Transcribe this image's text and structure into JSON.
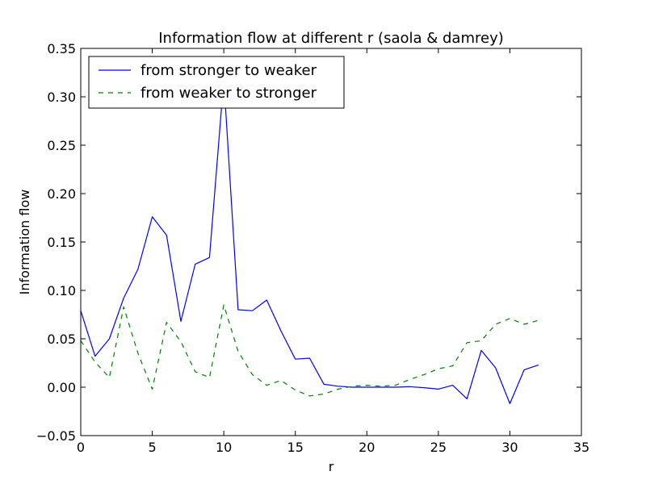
{
  "chart_data": {
    "type": "line",
    "title": "Information flow at different r (saola & damrey)",
    "xlabel": "r",
    "ylabel": "Information flow",
    "xlim": [
      0,
      35
    ],
    "ylim": [
      -0.05,
      0.35
    ],
    "x_ticks": [
      0,
      5,
      10,
      15,
      20,
      25,
      30,
      35
    ],
    "x_tick_labels": [
      "0",
      "5",
      "10",
      "15",
      "20",
      "25",
      "30",
      "35"
    ],
    "y_ticks": [
      -0.05,
      0.0,
      0.05,
      0.1,
      0.15,
      0.2,
      0.25,
      0.3,
      0.35
    ],
    "y_tick_labels": [
      "−0.05",
      "0.00",
      "0.05",
      "0.10",
      "0.15",
      "0.20",
      "0.25",
      "0.30",
      "0.35"
    ],
    "grid": false,
    "legend_position": "upper-left",
    "x": [
      0,
      1,
      2,
      3,
      4,
      5,
      6,
      7,
      8,
      9,
      10,
      11,
      12,
      13,
      14,
      15,
      16,
      17,
      18,
      19,
      20,
      21,
      22,
      23,
      24,
      25,
      26,
      27,
      28,
      29,
      30,
      31,
      32
    ],
    "series": [
      {
        "name": "from stronger to weaker",
        "color": "#0000ff",
        "style": "solid",
        "values": [
          0.079,
          0.032,
          0.05,
          0.092,
          0.122,
          0.176,
          0.157,
          0.068,
          0.127,
          0.134,
          0.318,
          0.08,
          0.079,
          0.09,
          0.058,
          0.029,
          0.03,
          0.003,
          0.001,
          0.0,
          0.0,
          0.0,
          0.0,
          0.0005,
          -0.0005,
          -0.002,
          0.002,
          -0.012,
          0.038,
          0.02,
          -0.017,
          0.018,
          0.023
        ]
      },
      {
        "name": "from weaker to stronger",
        "color": "#008000",
        "style": "dashed",
        "values": [
          0.048,
          0.026,
          0.01,
          0.083,
          0.035,
          -0.002,
          0.067,
          0.047,
          0.016,
          0.01,
          0.085,
          0.037,
          0.013,
          0.002,
          0.007,
          -0.003,
          -0.009,
          -0.007,
          -0.002,
          0.001,
          0.002,
          0.001,
          0.002,
          0.008,
          0.013,
          0.019,
          0.022,
          0.046,
          0.048,
          0.065,
          0.071,
          0.065,
          0.069
        ]
      }
    ]
  }
}
